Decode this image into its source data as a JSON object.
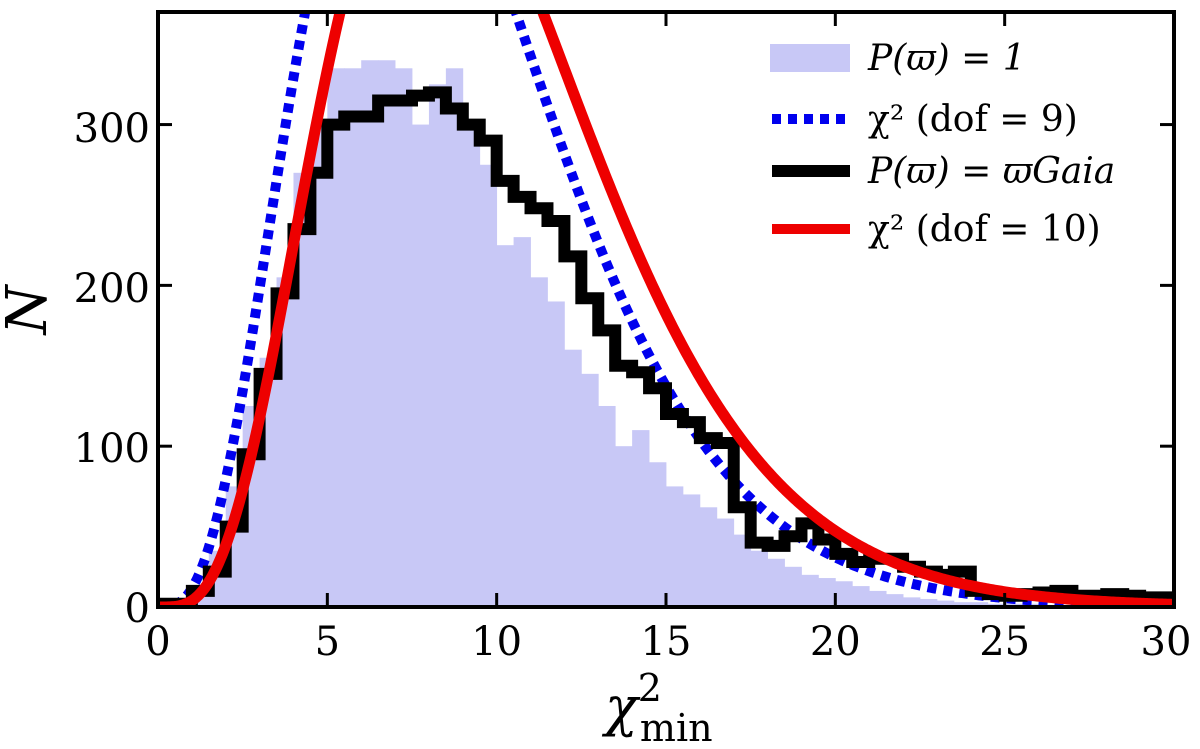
{
  "chart_data": {
    "type": "histogram",
    "xlabel": {
      "base": "χ",
      "sup": "2",
      "sub": "min"
    },
    "ylabel": "N",
    "xlim": [
      0,
      30
    ],
    "ylim": [
      0,
      370
    ],
    "x_ticks": [
      0,
      5,
      10,
      15,
      20,
      25,
      30
    ],
    "y_ticks": [
      0,
      100,
      200,
      300
    ],
    "x_tick_labels": [
      "0",
      "5",
      "10",
      "15",
      "20",
      "25",
      "30"
    ],
    "y_tick_labels": [
      "0",
      "100",
      "200",
      "300"
    ],
    "legend_position": "top-right",
    "series": [
      {
        "name": "P(ϖ) = 1",
        "kind": "histogram-filled",
        "color": "#c8c8f6",
        "bin_edges": [
          0,
          0.5,
          1,
          1.5,
          2,
          2.5,
          3,
          3.5,
          4,
          4.5,
          5,
          5.5,
          6,
          6.5,
          7,
          7.5,
          8,
          8.5,
          9,
          9.5,
          10,
          10.5,
          11,
          11.5,
          12,
          12.5,
          13,
          13.5,
          14,
          14.5,
          15,
          15.5,
          16,
          16.5,
          17,
          17.5,
          18,
          18.5,
          19,
          19.5,
          20,
          20.5,
          21,
          21.5,
          22,
          22.5,
          23,
          23.5,
          24,
          24.5,
          25,
          25.5,
          26,
          26.5,
          27,
          27.5,
          28,
          28.5,
          29,
          29.5,
          30
        ],
        "counts": [
          2,
          5,
          12,
          35,
          75,
          125,
          155,
          205,
          270,
          300,
          335,
          335,
          340,
          340,
          335,
          300,
          325,
          335,
          300,
          275,
          225,
          230,
          205,
          190,
          160,
          145,
          125,
          100,
          110,
          90,
          75,
          70,
          62,
          55,
          45,
          35,
          30,
          25,
          20,
          18,
          16,
          13,
          10,
          8,
          6,
          5,
          4,
          3,
          3,
          2,
          2,
          2,
          1,
          1,
          1,
          1,
          1,
          1,
          1,
          1
        ]
      },
      {
        "name": "χ² (dof = 9)",
        "kind": "curve",
        "color": "#0000ee",
        "dash": "dotted",
        "dof": 9,
        "scale": 5000
      },
      {
        "name": "P(ϖ) = ϖGaia",
        "kind": "histogram-step",
        "color": "#000000",
        "bin_edges": [
          0,
          0.5,
          1,
          1.5,
          2,
          2.5,
          3,
          3.5,
          4,
          4.5,
          5,
          5.5,
          6,
          6.5,
          7,
          7.5,
          8,
          8.5,
          9,
          9.5,
          10,
          10.5,
          11,
          11.5,
          12,
          12.5,
          13,
          13.5,
          14,
          14.5,
          15,
          15.5,
          16,
          16.5,
          17,
          17.5,
          18,
          18.5,
          19,
          19.5,
          20,
          20.5,
          21,
          21.5,
          22,
          22.5,
          23,
          23.5,
          24,
          24.5,
          25,
          25.5,
          26,
          26.5,
          27,
          27.5,
          28,
          28.5,
          29,
          29.5,
          30
        ],
        "counts": [
          2,
          2,
          10,
          22,
          50,
          95,
          145,
          195,
          235,
          270,
          300,
          305,
          305,
          315,
          315,
          318,
          320,
          310,
          300,
          290,
          265,
          255,
          248,
          240,
          218,
          192,
          172,
          150,
          146,
          136,
          120,
          115,
          105,
          102,
          62,
          40,
          38,
          44,
          52,
          42,
          33,
          28,
          30,
          30,
          25,
          22,
          20,
          22,
          10,
          8,
          7,
          8,
          9,
          10,
          7,
          7,
          8,
          7,
          6,
          6
        ]
      },
      {
        "name": "χ² (dof = 10)",
        "kind": "curve",
        "color": "#ee0000",
        "dash": "solid",
        "dof": 10,
        "scale": 5000
      }
    ],
    "legend": [
      {
        "label": "P(ϖ) = 1",
        "style": "patch",
        "color": "#c8c8f6"
      },
      {
        "label": "χ² (dof = 9)",
        "style": "dotted",
        "color": "#0000ee"
      },
      {
        "label": "P(ϖ) = ϖGaia",
        "style": "thick",
        "color": "#000000"
      },
      {
        "label": "χ² (dof = 10)",
        "style": "solid",
        "color": "#ee0000"
      }
    ]
  }
}
